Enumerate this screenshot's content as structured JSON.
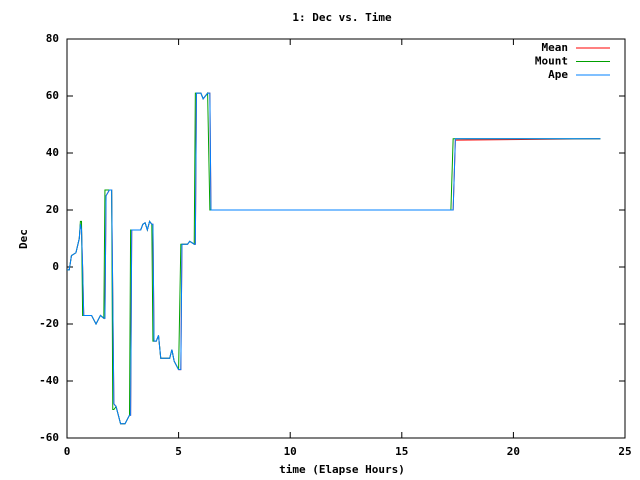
{
  "chart_data": {
    "type": "line",
    "title": "1: Dec vs. Time",
    "x_label": "time (Elapse Hours)",
    "y_label": "Dec",
    "x": [
      0,
      0.1,
      0.2,
      0.4,
      0.55,
      0.6,
      0.65,
      0.7,
      0.75,
      1.1,
      1.3,
      1.5,
      1.65,
      1.7,
      1.75,
      1.9,
      2.0,
      2.05,
      2.1,
      2.2,
      2.4,
      2.6,
      2.8,
      2.85,
      2.9,
      3.3,
      3.4,
      3.5,
      3.6,
      3.7,
      3.8,
      3.85,
      3.9,
      4.0,
      4.1,
      4.2,
      4.6,
      4.7,
      4.8,
      5.0,
      5.1,
      5.15,
      5.4,
      5.5,
      5.7,
      5.75,
      5.8,
      6.0,
      6.1,
      6.3,
      6.4,
      6.45,
      17.2,
      17.3,
      17.4,
      23.9
    ],
    "series": [
      {
        "name": "Mean",
        "color": "#ff0000",
        "values": [
          -1,
          -1,
          4,
          5,
          10,
          15,
          13,
          0,
          -17,
          -17,
          -20,
          -17,
          -18,
          -18,
          25,
          27,
          27,
          -10,
          -48,
          -49,
          -55,
          -55,
          -52,
          -52,
          13,
          13,
          15,
          15.5,
          13,
          16,
          15,
          15,
          -26,
          -26,
          -24,
          -32,
          -32,
          -29,
          -33,
          -36,
          -36,
          8,
          8,
          9,
          8,
          8,
          61,
          61,
          59,
          61,
          61,
          20,
          20,
          20,
          44.5,
          45
        ]
      },
      {
        "name": "Mount",
        "color": "#00a000",
        "values": [
          -1,
          -1,
          4,
          5,
          10,
          16,
          16,
          -17,
          -17,
          -17,
          -20,
          -17,
          -18,
          27,
          27,
          27,
          27,
          -50,
          -50,
          -49,
          -55,
          -55,
          -52,
          13,
          13,
          13,
          15,
          15.5,
          13,
          16,
          15,
          -26,
          -26,
          -26,
          -24,
          -32,
          -32,
          -29,
          -33,
          -36,
          8,
          8,
          8,
          9,
          8,
          61,
          61,
          61,
          59,
          61,
          20,
          20,
          20,
          45,
          45,
          45
        ]
      },
      {
        "name": "Ape",
        "color": "#0080ff",
        "values": [
          -1,
          -1,
          4,
          5,
          10,
          15,
          13,
          0,
          -17,
          -17,
          -20,
          -17,
          -18,
          -18,
          25,
          27,
          27,
          -10,
          -48,
          -49,
          -55,
          -55,
          -52,
          -52,
          13,
          13,
          15,
          15.5,
          13,
          16,
          15,
          15,
          -26,
          -26,
          -24,
          -32,
          -32,
          -29,
          -33,
          -36,
          -36,
          8,
          8,
          9,
          8,
          8,
          61,
          61,
          59,
          61,
          61,
          20,
          20,
          20,
          45,
          45
        ]
      }
    ],
    "xlim": [
      0,
      25
    ],
    "xticks": [
      0,
      5,
      10,
      15,
      20,
      25
    ],
    "ylim": [
      -60,
      80
    ],
    "yticks": [
      -60,
      -40,
      -20,
      0,
      20,
      40,
      60,
      80
    ],
    "legend": "top-right"
  }
}
